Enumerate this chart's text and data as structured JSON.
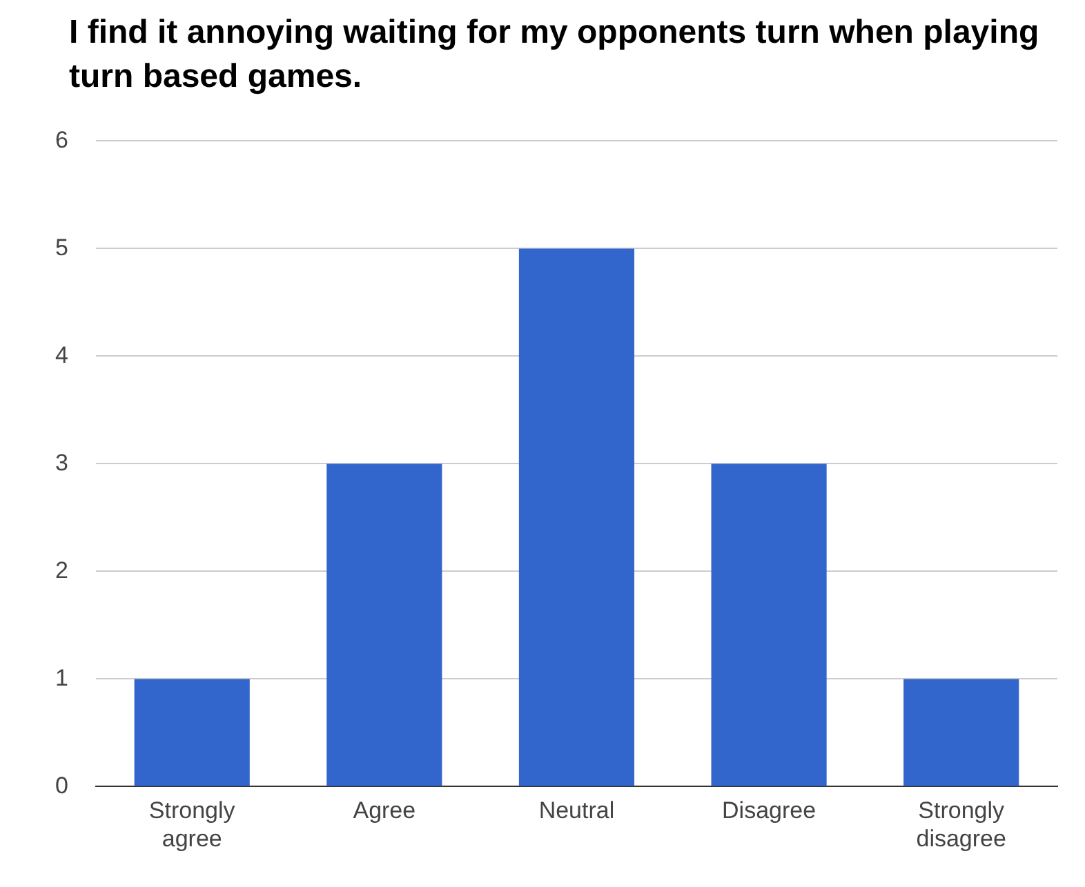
{
  "chart_data": {
    "type": "bar",
    "title": "I find it annoying waiting for my opponents turn when playing turn based games.",
    "categories": [
      "Strongly agree",
      "Agree",
      "Neutral",
      "Disagree",
      "Strongly disagree"
    ],
    "values": [
      1,
      3,
      5,
      3,
      1
    ],
    "color": "#3366cc",
    "ylim": [
      0,
      6
    ],
    "yticks": [
      0,
      1,
      2,
      3,
      4,
      5,
      6
    ],
    "grid": "y"
  }
}
